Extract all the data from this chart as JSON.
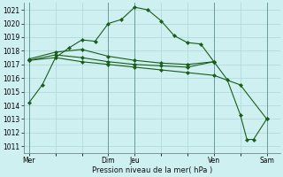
{
  "bg_color": "#cff0f0",
  "grid_color": "#aad8d8",
  "line_color": "#1a5c1a",
  "marker_color": "#1a5c1a",
  "xlabel": "Pression niveau de la mer( hPa )",
  "ylim": [
    1010.5,
    1021.5
  ],
  "yticks": [
    1011,
    1012,
    1013,
    1014,
    1015,
    1016,
    1017,
    1018,
    1019,
    1020,
    1021
  ],
  "xtick_labels": [
    "Mer",
    "Dim",
    "Jeu",
    "Ven",
    "Sam"
  ],
  "xtick_positions": [
    0,
    3,
    4,
    7,
    9
  ],
  "vlines": [
    0,
    3,
    4,
    7,
    9
  ],
  "xlim": [
    -0.2,
    9.5
  ],
  "series": [
    {
      "x": [
        0,
        0.5,
        1.0,
        1.5,
        2.0,
        2.5,
        3.0,
        3.5,
        4.0,
        4.5,
        5.0,
        5.5,
        6.0,
        6.5,
        7.0,
        7.5,
        8.0,
        8.25,
        8.5,
        9.0
      ],
      "y": [
        1014.2,
        1015.5,
        1017.5,
        1018.2,
        1018.8,
        1018.7,
        1020.0,
        1020.3,
        1021.2,
        1021.0,
        1020.2,
        1019.1,
        1018.6,
        1018.5,
        1017.2,
        1015.9,
        1013.3,
        1011.5,
        1011.5,
        1013.0
      ]
    },
    {
      "x": [
        0,
        1,
        2,
        3,
        4,
        5,
        6,
        7,
        8,
        9
      ],
      "y": [
        1017.3,
        1017.5,
        1017.2,
        1017.0,
        1016.8,
        1016.6,
        1016.4,
        1016.2,
        1015.5,
        1013.0
      ]
    },
    {
      "x": [
        0,
        1,
        2,
        3,
        4,
        5,
        6,
        7
      ],
      "y": [
        1017.3,
        1017.7,
        1017.5,
        1017.2,
        1017.0,
        1016.9,
        1016.8,
        1017.2
      ]
    },
    {
      "x": [
        0,
        1,
        2,
        3,
        4,
        5,
        6,
        7
      ],
      "y": [
        1017.4,
        1017.9,
        1018.1,
        1017.6,
        1017.3,
        1017.1,
        1017.0,
        1017.2
      ]
    }
  ]
}
